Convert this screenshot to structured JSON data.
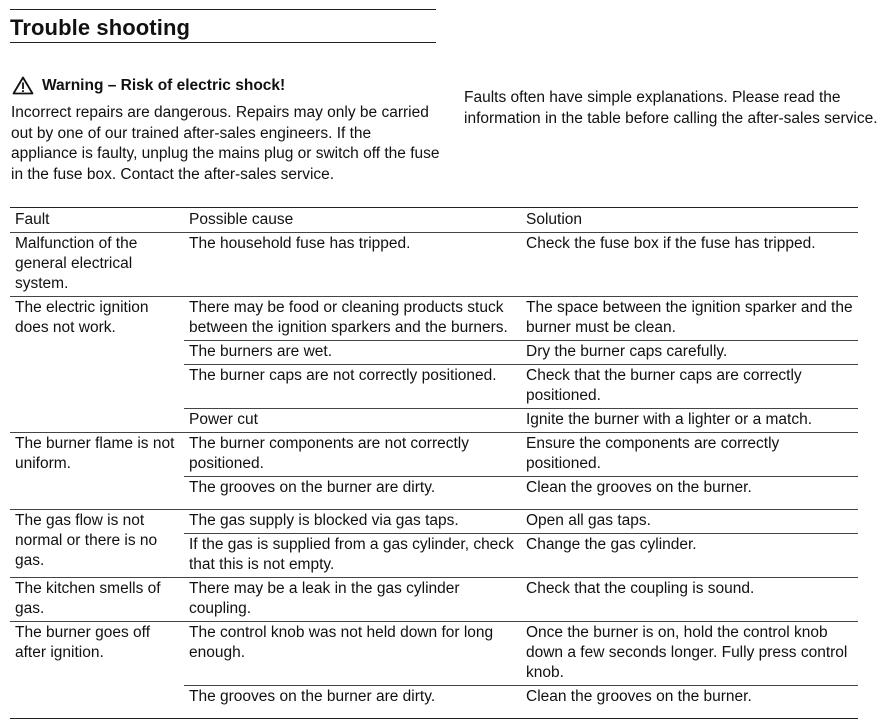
{
  "title": "Trouble shooting",
  "warning": {
    "icon": "warning-triangle-icon",
    "heading": "Warning – Risk of electric shock!",
    "text": "Incorrect repairs are dangerous. Repairs may only be carried out by one of our trained after-sales engineers. If the appliance is faulty, unplug the mains plug or switch off the fuse in the fuse box. Contact the after-sales service."
  },
  "intro": "Faults often have simple explanations. Please read the information in the table before calling the after-sales service.",
  "table": {
    "headers": [
      "Fault",
      "Possible cause",
      "Solution"
    ],
    "faults": [
      {
        "fault": "Malfunction of the general electrical system.",
        "rows": [
          {
            "cause": "The household fuse has tripped.",
            "solution": "Check the fuse box if the fuse has tripped."
          }
        ]
      },
      {
        "fault": "The electric ignition does not work.",
        "rows": [
          {
            "cause": "There may be food or cleaning products stuck between the ignition sparkers and the burners.",
            "solution": "The space between the ignition sparker and the burner must be clean."
          },
          {
            "cause": "The burners are wet.",
            "solution": "Dry the burner caps carefully."
          },
          {
            "cause": "The burner caps are not correctly positioned.",
            "solution": "Check that the burner caps are correctly positioned."
          },
          {
            "cause": "Power cut",
            "solution": "Ignite the burner with a lighter or a match."
          }
        ]
      },
      {
        "fault": "The burner flame is not uniform.",
        "rows": [
          {
            "cause": "The burner components are not correctly positioned.",
            "solution": "Ensure the components are correctly positioned."
          },
          {
            "cause": "The grooves on the burner are dirty.",
            "solution": "Clean the grooves on the burner."
          }
        ]
      },
      {
        "fault": "The gas flow is not normal or there is no gas.",
        "rows": [
          {
            "cause": "The gas supply is blocked via gas taps.",
            "solution": "Open all gas taps."
          },
          {
            "cause": "If the gas is supplied from a gas cylinder, check that this is not empty.",
            "solution": "Change the gas cylinder."
          }
        ]
      },
      {
        "fault": "The kitchen smells of gas.",
        "rows": [
          {
            "cause": "There may be a leak in the gas cylinder coupling.",
            "solution": "Check that the coupling is sound."
          }
        ]
      },
      {
        "fault": "The burner goes off after ignition.",
        "rows": [
          {
            "cause": "The control knob was not held down for long enough.",
            "solution": "Once the burner is on, hold the control knob down a few seconds longer. Fully press control knob."
          },
          {
            "cause": "The grooves on the burner are dirty.",
            "solution": "Clean the grooves on the burner."
          }
        ]
      }
    ]
  }
}
